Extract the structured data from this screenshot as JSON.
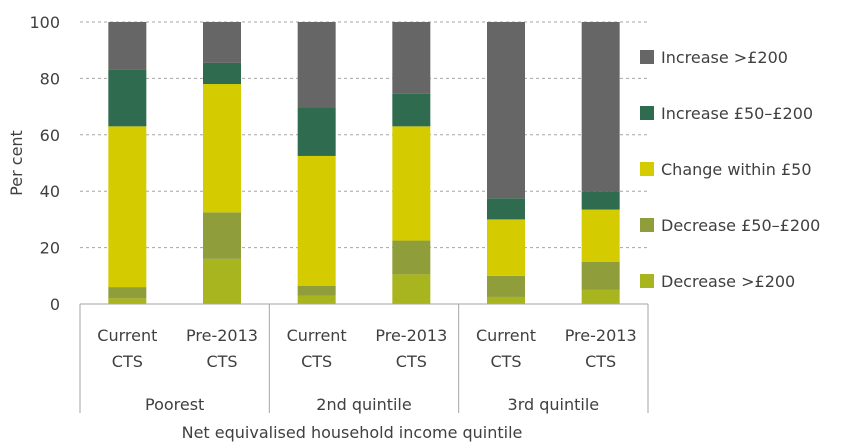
{
  "chart_data": {
    "type": "bar",
    "stacked": true,
    "title": "",
    "ylabel": "Per cent",
    "xlabel": "Net equivalised household income quintile",
    "ylim": [
      0,
      100
    ],
    "yticks": [
      0,
      20,
      40,
      60,
      80,
      100
    ],
    "grid": "horizontal dashed",
    "legend_position": "right",
    "groups": [
      "Poorest",
      "2nd quintile",
      "3rd quintile"
    ],
    "categories": [
      [
        "Current",
        "CTS"
      ],
      [
        "Pre-2013",
        "CTS"
      ],
      [
        "Current",
        "CTS"
      ],
      [
        "Pre-2013",
        "CTS"
      ],
      [
        "Current",
        "CTS"
      ],
      [
        "Pre-2013",
        "CTS"
      ]
    ],
    "category_group": [
      0,
      0,
      1,
      1,
      2,
      2
    ],
    "series": [
      {
        "name": "Decrease >£200",
        "color": "#a9b51f",
        "values": [
          2,
          16,
          3,
          10.5,
          2.5,
          5
        ]
      },
      {
        "name": "Decrease £50–£200",
        "color": "#8f9e3a",
        "values": [
          4,
          16.5,
          3.5,
          12,
          7.5,
          10
        ]
      },
      {
        "name": "Change within £50",
        "color": "#d4cc00",
        "values": [
          57,
          45.5,
          46,
          40.5,
          20,
          18.5
        ]
      },
      {
        "name": "Increase £50–£200",
        "color": "#2e6b4f",
        "values": [
          20,
          7.5,
          17,
          11.5,
          7.5,
          6.5
        ]
      },
      {
        "name": "Increase >£200",
        "color": "#666666",
        "values": [
          17,
          14.5,
          30.5,
          25.5,
          62.5,
          60
        ]
      }
    ],
    "legend_order": [
      4,
      3,
      2,
      1,
      0
    ]
  }
}
